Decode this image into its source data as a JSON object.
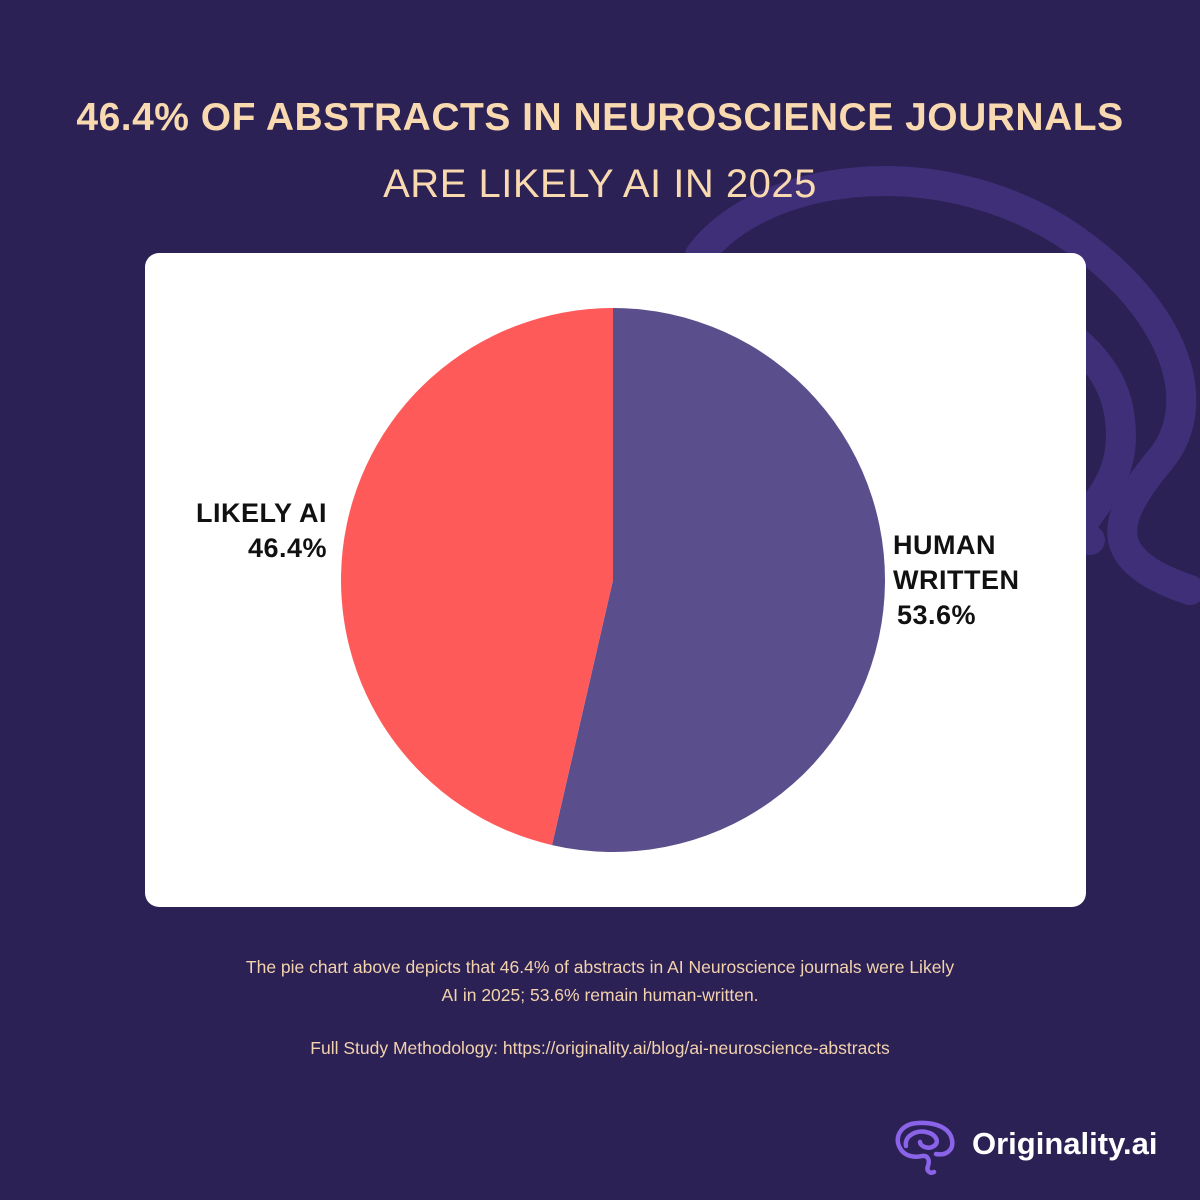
{
  "header": {
    "title": "46.4% OF ABSTRACTS IN NEUROSCIENCE JOURNALS",
    "subtitle": "ARE LIKELY AI IN 2025"
  },
  "colors": {
    "background": "#2b2154",
    "title": "#f9d9b0",
    "card": "#ffffff",
    "likely_ai": "#ff5a5a",
    "human_written": "#5b4e8c",
    "swirl": "#3e2f78",
    "brand_icon": "#8a63e8"
  },
  "chart_data": {
    "type": "pie",
    "slices": [
      {
        "label": "LIKELY AI",
        "value": 46.4,
        "value_label": "46.4%",
        "color": "#ff5a5a"
      },
      {
        "label": "HUMAN WRITTEN",
        "value": 53.6,
        "value_label": "53.6%",
        "color": "#5b4e8c"
      }
    ],
    "start": "top",
    "direction": "clockwise from HUMAN WRITTEN"
  },
  "labels": {
    "likely_ai": {
      "line1": "LIKELY AI",
      "pct": "46.4%"
    },
    "human": {
      "line1": "HUMAN",
      "line2": "WRITTEN",
      "pct": "53.6%"
    }
  },
  "caption": {
    "line1": "The pie chart above depicts that 46.4% of abstracts in AI Neuroscience journals were Likely",
    "line2": "AI in 2025; 53.6% remain human-written.",
    "methodology": "Full Study Methodology: https://originality.ai/blog/ai-neuroscience-abstracts"
  },
  "brand": {
    "name": "Originality.ai",
    "icon": "brain-icon"
  }
}
